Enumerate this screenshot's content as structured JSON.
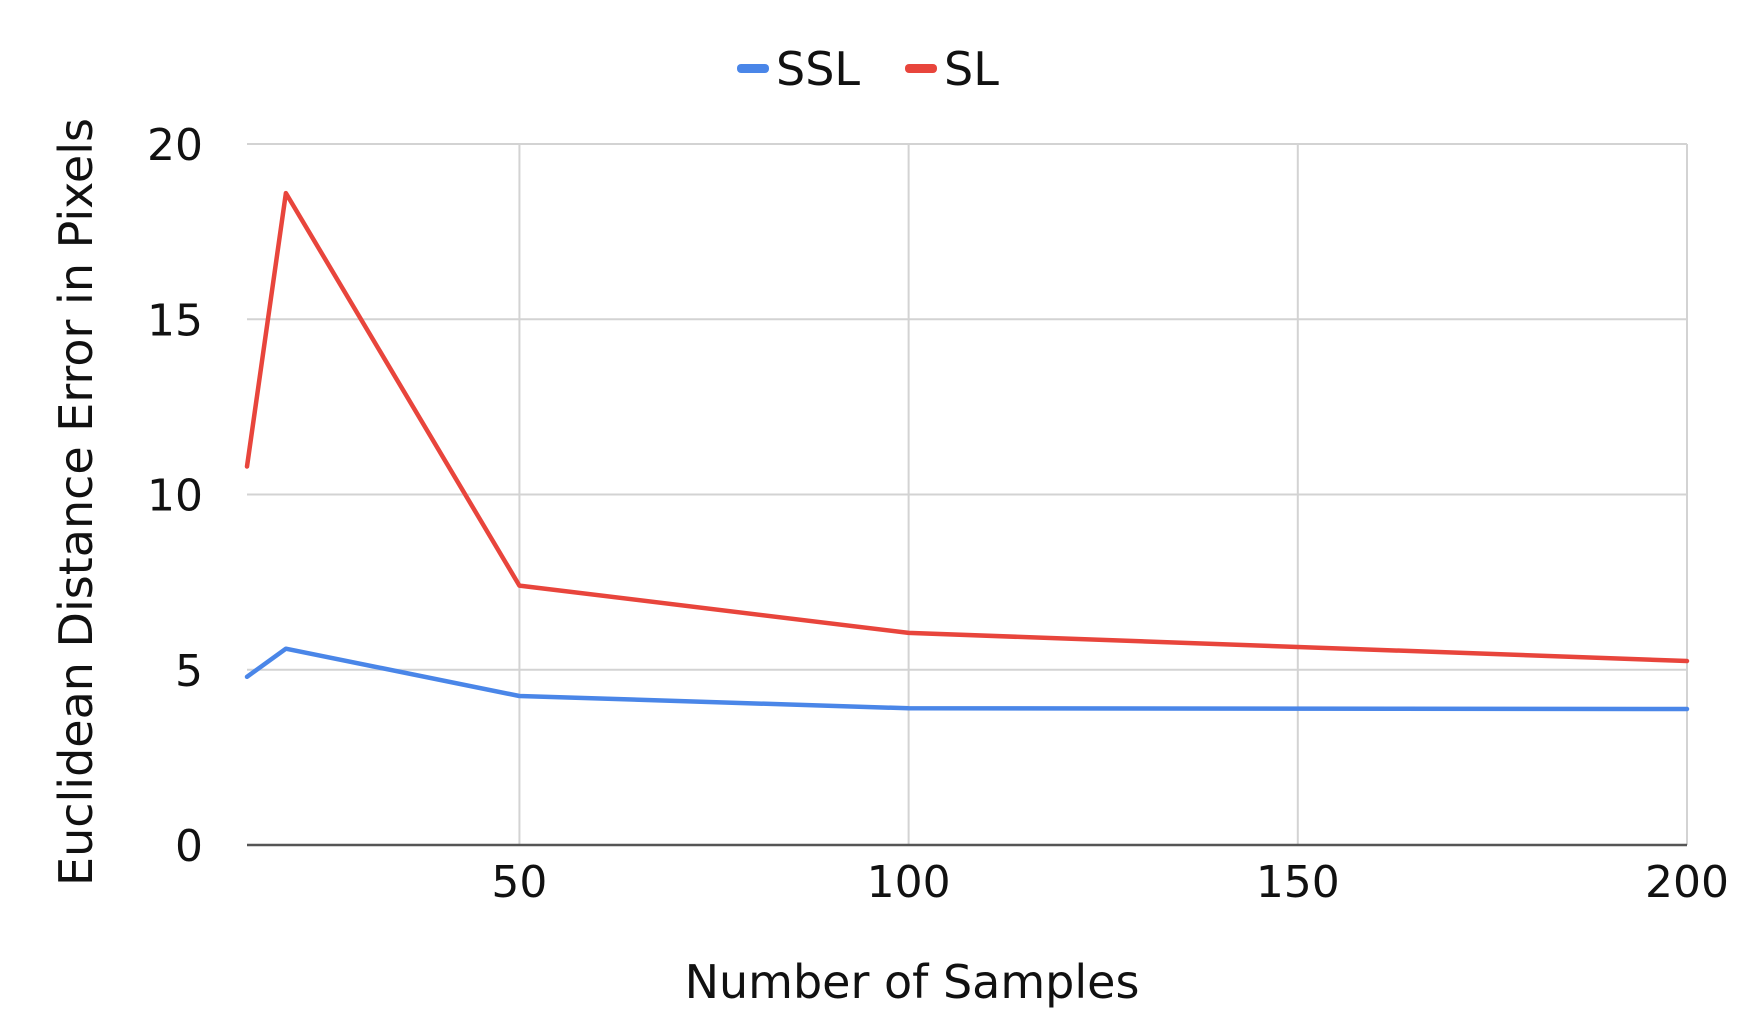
{
  "chart_data": {
    "type": "line",
    "title": "",
    "xlabel": "Number of Samples",
    "ylabel": "Euclidean Distance Error in Pixels",
    "xlim": [
      15,
      200
    ],
    "ylim": [
      0,
      20
    ],
    "x_ticks": [
      50,
      100,
      150,
      200
    ],
    "y_ticks": [
      0,
      5,
      10,
      15,
      20
    ],
    "grid": true,
    "legend_position": "top-center",
    "series": [
      {
        "name": "SSL",
        "color": "#4a86e8",
        "x": [
          15,
          20,
          50,
          100,
          200
        ],
        "y": [
          4.8,
          5.6,
          4.25,
          3.9,
          3.88
        ]
      },
      {
        "name": "SL",
        "color": "#e8453c",
        "x": [
          15,
          20,
          50,
          100,
          200
        ],
        "y": [
          10.8,
          18.6,
          7.4,
          6.05,
          5.25
        ]
      }
    ]
  }
}
